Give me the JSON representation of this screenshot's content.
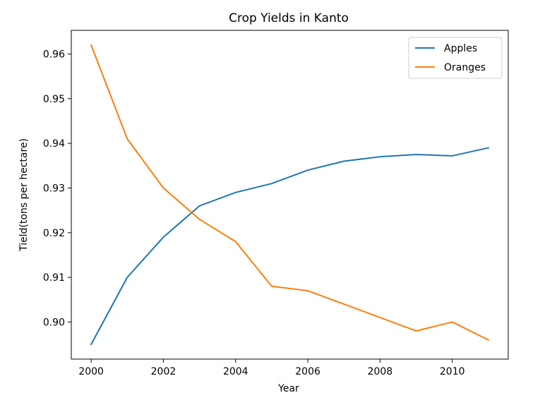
{
  "chart_data": {
    "type": "line",
    "title": "Crop Yields in Kanto",
    "xlabel": "Year",
    "ylabel": "Tield(tons per hectare)",
    "x": [
      2000,
      2001,
      2002,
      2003,
      2004,
      2005,
      2006,
      2007,
      2008,
      2009,
      2010,
      2011
    ],
    "xlim": [
      1999.45,
      2011.55
    ],
    "ylim": [
      0.8917,
      0.9653
    ],
    "xticks": [
      2000,
      2002,
      2004,
      2006,
      2008,
      2010
    ],
    "xtick_labels": [
      "2000",
      "2002",
      "2004",
      "2006",
      "2008",
      "2010"
    ],
    "yticks": [
      0.9,
      0.91,
      0.92,
      0.93,
      0.94,
      0.95,
      0.96
    ],
    "ytick_labels": [
      "0.90",
      "0.91",
      "0.92",
      "0.93",
      "0.94",
      "0.95",
      "0.96"
    ],
    "grid": false,
    "legend_position": "top-right",
    "series": [
      {
        "name": "Apples",
        "color": "#1f77b4",
        "values": [
          0.895,
          0.91,
          0.919,
          0.926,
          0.929,
          0.931,
          0.934,
          0.936,
          0.937,
          0.9375,
          0.9372,
          0.939
        ]
      },
      {
        "name": "Oranges",
        "color": "#ff7f0e",
        "values": [
          0.962,
          0.941,
          0.93,
          0.923,
          0.918,
          0.908,
          0.907,
          0.904,
          0.901,
          0.898,
          0.9,
          0.896
        ]
      }
    ]
  }
}
